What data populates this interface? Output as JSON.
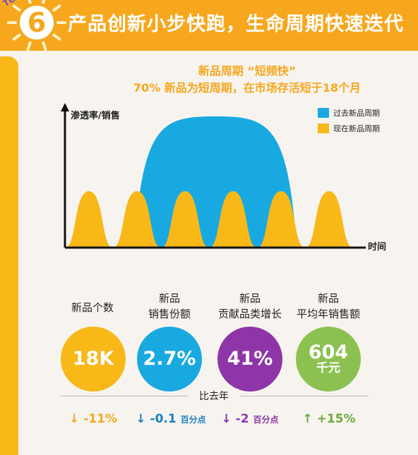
{
  "banner": {
    "number": "6",
    "title": "产品创新小步快跑，生命周期快速迭代",
    "corner_text": "TOP"
  },
  "chart_data": {
    "type": "area",
    "title": "新品周期 “短频快”",
    "subtitle": "70% 新品为短周期，在市场存活短于18个月",
    "ylabel": "渗透率/销售",
    "xlabel": "时间",
    "legend_position": "top-right",
    "series": [
      {
        "name": "过去新品周期",
        "color": "#19a9e1",
        "shape": "single long cycle",
        "peak": 1.0
      },
      {
        "name": "现在新品周期",
        "color": "#f7b818",
        "shape": "repeated short cycles",
        "count": 6,
        "peak": 0.43
      }
    ]
  },
  "metrics": [
    {
      "label": "新品个数",
      "value": "18K",
      "value_sub": "",
      "color": "#f7b818",
      "arrow": "↓",
      "change": "-11%",
      "change_unit": "",
      "change_color": "#f6a71d"
    },
    {
      "label": "新品\n销售份额",
      "value": "2.7%",
      "value_sub": "",
      "color": "#19a9e1",
      "arrow": "↓",
      "change": "-0.1",
      "change_unit": "百分点",
      "change_color": "#1a7fc1"
    },
    {
      "label": "新品\n贡献品类增长",
      "value": "41%",
      "value_sub": "",
      "color": "#8e36a8",
      "arrow": "↓",
      "change": "-2",
      "change_unit": "百分点",
      "change_color": "#8e36a8"
    },
    {
      "label": "新品\n平均年销售额",
      "value": "604",
      "value_sub": "千元",
      "color": "#8cc152",
      "arrow": "↑",
      "change": "+15%",
      "change_unit": "",
      "change_color": "#6aaa3a"
    }
  ],
  "comparison_label": "比去年"
}
